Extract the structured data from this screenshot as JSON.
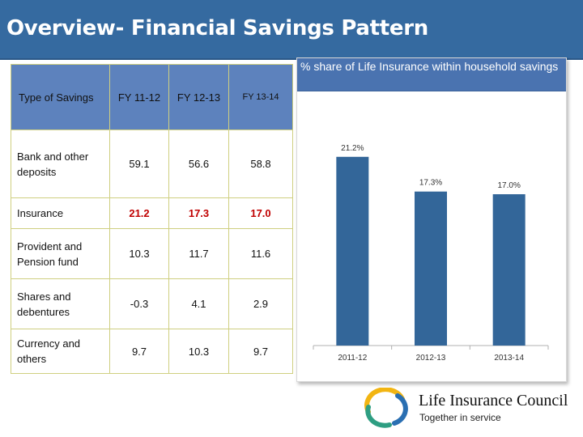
{
  "slide": {
    "title": "Overview- Financial Savings Pattern"
  },
  "table": {
    "headers": [
      "Type of Savings",
      "FY 11-12",
      "FY 12-13",
      "FY 13-14"
    ],
    "rows": [
      {
        "label": "Bank and other deposits",
        "values": [
          "59.1",
          "56.6",
          "58.8"
        ],
        "highlight": false
      },
      {
        "label": "Insurance",
        "values": [
          "21.2",
          "17.3",
          "17.0"
        ],
        "highlight": true
      },
      {
        "label": "Provident and Pension fund",
        "values": [
          "10.3",
          "11.7",
          "11.6"
        ],
        "highlight": false
      },
      {
        "label": "Shares and debentures",
        "values": [
          "-0.3",
          "4.1",
          "2.9"
        ],
        "highlight": false
      },
      {
        "label": "Currency and others",
        "values": [
          "9.7",
          "10.3",
          "9.7"
        ],
        "highlight": false
      }
    ]
  },
  "chart_data": {
    "type": "bar",
    "title": "% share of Life Insurance within household savings",
    "categories": [
      "2011-12",
      "2012-13",
      "2013-14"
    ],
    "values": [
      21.2,
      17.3,
      17.0
    ],
    "data_labels": [
      "21.2%",
      "17.3%",
      "17.0%"
    ],
    "ylim": [
      0,
      25
    ],
    "grid": false,
    "legend": "none",
    "bar_color": "#336699"
  },
  "logo": {
    "name": "Life Insurance Council",
    "tagline": "Together in service"
  },
  "colors": {
    "title_bar": "#356aa0",
    "table_header": "#5d82bd",
    "highlight_text": "#c00000",
    "chart_title": "#4a73b0"
  }
}
